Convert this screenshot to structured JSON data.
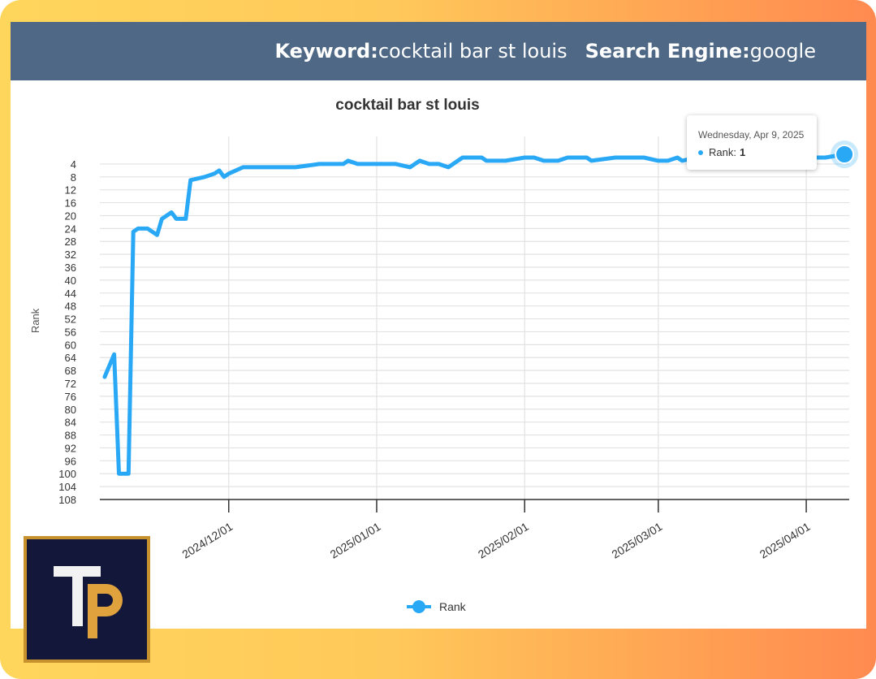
{
  "header": {
    "keyword_label": "Keyword:",
    "keyword_value": "cocktail bar st louis",
    "engine_label": "Search Engine:",
    "engine_value": "google"
  },
  "tooltip": {
    "date": "Wednesday, Apr 9, 2025",
    "series": "Rank",
    "sep": ":",
    "value": "1"
  },
  "legend": {
    "label": "Rank"
  },
  "colors": {
    "header_bg": "#4e6885",
    "line": "#29a8f5",
    "logo_bg": "#13183a",
    "logo_accent": "#e0a23c"
  },
  "icons": {
    "logo": "tp-logo-mark"
  },
  "chart_data": {
    "type": "line",
    "title": "cocktail bar st louis",
    "ylabel": "Rank",
    "xlabel": "",
    "y_inverted": true,
    "ylim": [
      1,
      108
    ],
    "yticks": [
      4,
      8,
      12,
      16,
      20,
      24,
      28,
      32,
      36,
      40,
      44,
      48,
      52,
      56,
      60,
      64,
      68,
      72,
      76,
      80,
      84,
      88,
      92,
      96,
      100,
      104,
      108
    ],
    "xlim": [
      "2024-11-04",
      "2025-04-10"
    ],
    "xticks": [
      "2024/12/01",
      "2025/01/01",
      "2025/02/01",
      "2025/03/01",
      "2025/04/01"
    ],
    "grid": true,
    "legend_position": "bottom",
    "series": [
      {
        "name": "Rank",
        "x": [
          "2024-11-05",
          "2024-11-07",
          "2024-11-08",
          "2024-11-10",
          "2024-11-11",
          "2024-11-12",
          "2024-11-14",
          "2024-11-16",
          "2024-11-17",
          "2024-11-19",
          "2024-11-20",
          "2024-11-22",
          "2024-11-23",
          "2024-11-26",
          "2024-11-28",
          "2024-11-29",
          "2024-11-30",
          "2024-12-01",
          "2024-12-04",
          "2024-12-05",
          "2024-12-10",
          "2024-12-15",
          "2024-12-20",
          "2024-12-25",
          "2024-12-26",
          "2024-12-28",
          "2024-12-30",
          "2025-01-03",
          "2025-01-05",
          "2025-01-08",
          "2025-01-10",
          "2025-01-12",
          "2025-01-14",
          "2025-01-16",
          "2025-01-18",
          "2025-01-19",
          "2025-01-23",
          "2025-01-24",
          "2025-01-28",
          "2025-02-01",
          "2025-02-03",
          "2025-02-05",
          "2025-02-08",
          "2025-02-10",
          "2025-02-14",
          "2025-02-15",
          "2025-02-20",
          "2025-02-22",
          "2025-02-26",
          "2025-03-01",
          "2025-03-03",
          "2025-03-05",
          "2025-03-06",
          "2025-03-09",
          "2025-03-10",
          "2025-03-20",
          "2025-03-25",
          "2025-03-30",
          "2025-04-05",
          "2025-04-09"
        ],
        "values": [
          70,
          63,
          100,
          100,
          25,
          24,
          24,
          26,
          21,
          19,
          21,
          21,
          9,
          8,
          7,
          6,
          8,
          7,
          5,
          5,
          5,
          5,
          4,
          4,
          3,
          4,
          4,
          4,
          4,
          5,
          3,
          4,
          4,
          5,
          3,
          2,
          2,
          3,
          3,
          2,
          2,
          3,
          3,
          2,
          2,
          3,
          2,
          2,
          2,
          3,
          3,
          2,
          3,
          2,
          4,
          4,
          3,
          2,
          2,
          1
        ]
      }
    ]
  }
}
